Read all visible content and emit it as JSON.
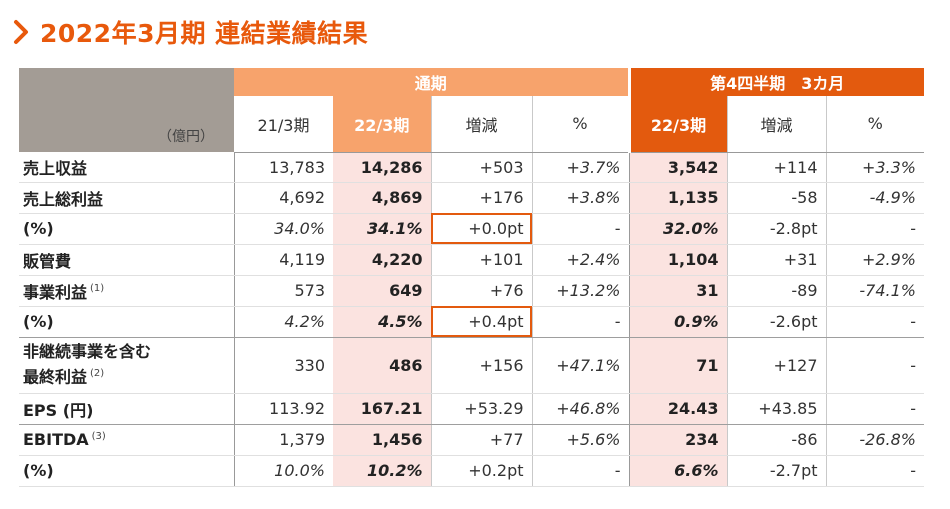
{
  "title": "2022年3月期 連結業績結果",
  "colors": {
    "accent": "#e8590c",
    "header_light": "#f7a36c",
    "header_dark": "#e35a0e",
    "highlight": "#fbe3e0"
  },
  "headers": {
    "unit": "（億円）",
    "group_full_year": "通期",
    "group_q4": "第4四半期　3カ月",
    "fy21": "21/3期",
    "fy22": "22/3期",
    "change": "増減",
    "pct": "%",
    "q4_22": "22/3期",
    "q4_change": "増減",
    "q4_pct": "%"
  },
  "rows": [
    {
      "label": "売上収益",
      "note": "",
      "fy21": "13,783",
      "fy22": "14,286",
      "chg": "+503",
      "pct": "+3.7%",
      "q4": "3,542",
      "q4chg": "+114",
      "q4pct": "+3.3%"
    },
    {
      "label": "売上総利益",
      "note": "",
      "fy21": "4,692",
      "fy22": "4,869",
      "chg": "+176",
      "pct": "+3.8%",
      "q4": "1,135",
      "q4chg": "-58",
      "q4pct": "-4.9%"
    },
    {
      "label": "(%)",
      "note": "",
      "fy21": "34.0%",
      "fy22": "34.1%",
      "chg": "+0.0pt",
      "pct": "-",
      "q4": "32.0%",
      "q4chg": "-2.8pt",
      "q4pct": "-"
    },
    {
      "label": "販管費",
      "note": "",
      "fy21": "4,119",
      "fy22": "4,220",
      "chg": "+101",
      "pct": "+2.4%",
      "q4": "1,104",
      "q4chg": "+31",
      "q4pct": "+2.9%"
    },
    {
      "label": "事業利益",
      "note": "(1)",
      "fy21": "573",
      "fy22": "649",
      "chg": "+76",
      "pct": "+13.2%",
      "q4": "31",
      "q4chg": "-89",
      "q4pct": "-74.1%"
    },
    {
      "label": "(%)",
      "note": "",
      "fy21": "4.2%",
      "fy22": "4.5%",
      "chg": "+0.4pt",
      "pct": "-",
      "q4": "0.9%",
      "q4chg": "-2.6pt",
      "q4pct": "-"
    },
    {
      "label": "非継続事業を含む",
      "label2": "最終利益",
      "note": "(2)",
      "fy21": "330",
      "fy22": "486",
      "chg": "+156",
      "pct": "+47.1%",
      "q4": "71",
      "q4chg": "+127",
      "q4pct": "-"
    },
    {
      "label": "EPS (円)",
      "note": "",
      "fy21": "113.92",
      "fy22": "167.21",
      "chg": "+53.29",
      "pct": "+46.8%",
      "q4": "24.43",
      "q4chg": "+43.85",
      "q4pct": "-"
    },
    {
      "label": "EBITDA",
      "note": "(3)",
      "fy21": "1,379",
      "fy22": "1,456",
      "chg": "+77",
      "pct": "+5.6%",
      "q4": "234",
      "q4chg": "-86",
      "q4pct": "-26.8%"
    },
    {
      "label": "(%)",
      "note": "",
      "fy21": "10.0%",
      "fy22": "10.2%",
      "chg": "+0.2pt",
      "pct": "-",
      "q4": "6.6%",
      "q4chg": "-2.7pt",
      "q4pct": "-"
    }
  ]
}
